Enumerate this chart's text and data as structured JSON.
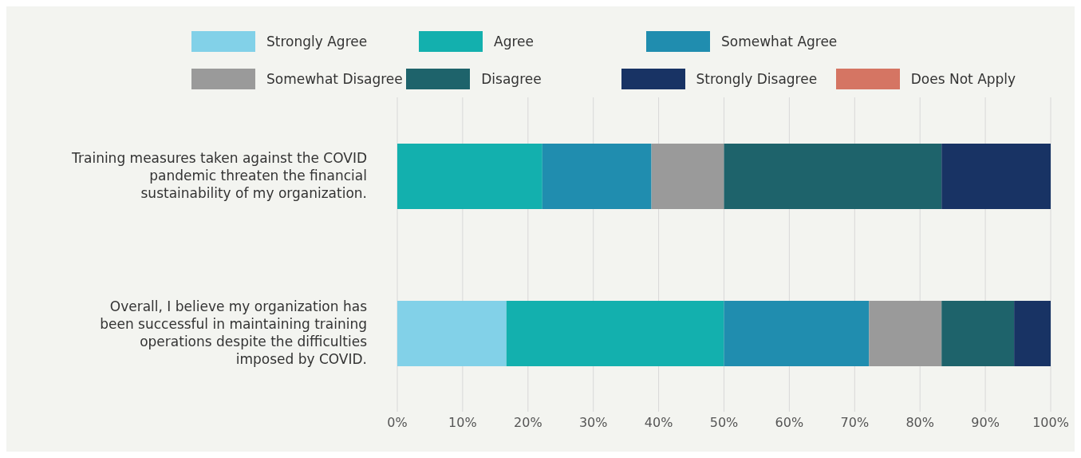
{
  "chart_data": {
    "type": "bar",
    "orientation": "horizontal",
    "stacked": true,
    "categories": [
      "Training measures taken against the COVID pandemic threaten the financial sustainability of my organization.",
      "Overall, I believe my organization has been successful in maintaining training operations despite the difficulties imposed by COVID."
    ],
    "series": [
      {
        "name": "Strongly Agree",
        "color": "#82d1e8",
        "values": [
          0,
          16.7
        ]
      },
      {
        "name": "Agree",
        "color": "#13b0ae",
        "values": [
          22.2,
          33.3
        ]
      },
      {
        "name": "Somewhat Agree",
        "color": "#208daf",
        "values": [
          16.7,
          22.2
        ]
      },
      {
        "name": "Somewhat Disagree",
        "color": "#9a9a9a",
        "values": [
          11.1,
          11.1
        ]
      },
      {
        "name": "Disagree",
        "color": "#1e636b",
        "values": [
          33.3,
          11.1
        ]
      },
      {
        "name": "Strongly Disagree",
        "color": "#183364",
        "values": [
          16.7,
          5.6
        ]
      },
      {
        "name": "Does Not Apply",
        "color": "#d57563",
        "values": [
          0,
          0
        ]
      }
    ],
    "xlim": [
      0,
      100
    ],
    "xticks": [
      {
        "value": 0,
        "label": "0%"
      },
      {
        "value": 10,
        "label": "10%"
      },
      {
        "value": 20,
        "label": "20%"
      },
      {
        "value": 30,
        "label": "30%"
      },
      {
        "value": 40,
        "label": "40%"
      },
      {
        "value": 50,
        "label": "50%"
      },
      {
        "value": 60,
        "label": "60%"
      },
      {
        "value": 70,
        "label": "70%"
      },
      {
        "value": 80,
        "label": "80%"
      },
      {
        "value": 90,
        "label": "90%"
      },
      {
        "value": 100,
        "label": "100%"
      }
    ],
    "grid": "x",
    "legend": "top"
  }
}
